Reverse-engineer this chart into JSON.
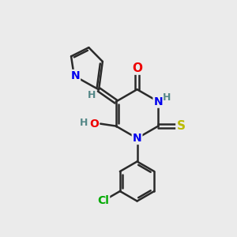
{
  "bg_color": "#ebebeb",
  "bond_color": "#2a2a2a",
  "bond_width": 1.8,
  "atom_colors": {
    "N": "#0000ee",
    "O": "#ee0000",
    "S": "#bbbb00",
    "Cl": "#00aa00",
    "C": "#2a2a2a",
    "H": "#558888"
  },
  "font_size": 10,
  "small_font_size": 9
}
